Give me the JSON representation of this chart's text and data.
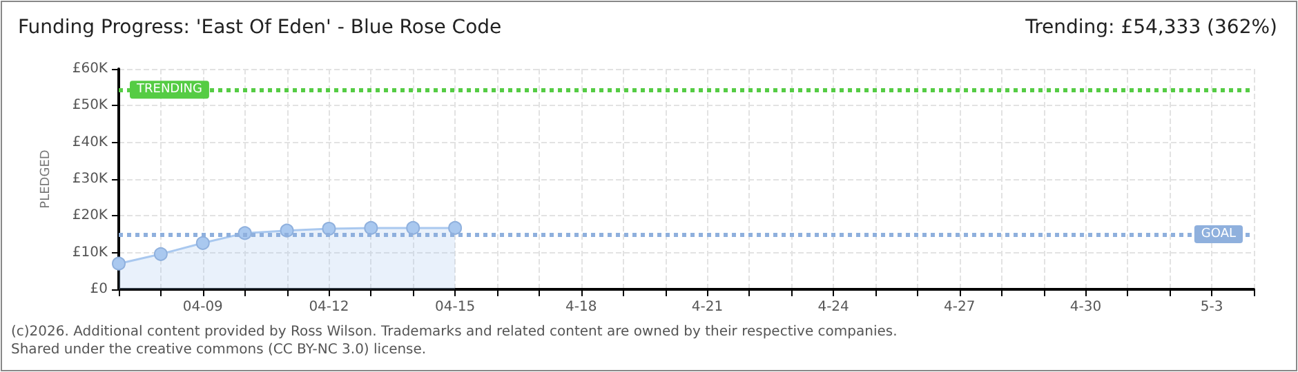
{
  "chart_data": {
    "type": "area",
    "title": "Funding Progress: 'East Of Eden' - Blue Rose Code",
    "subtitle": "Trending: £54,333 (362%)",
    "ylabel": "PLEDGED",
    "categories": [
      null,
      null,
      "04-09",
      null,
      null,
      "04-12",
      null,
      null,
      "04-15",
      null,
      null,
      "4-18",
      null,
      null,
      "4-21",
      null,
      null,
      "4-24",
      null,
      null,
      "4-27",
      null,
      null,
      "4-30",
      null,
      null,
      "5-3",
      null
    ],
    "series": [
      {
        "color": "#a9c8ef",
        "values": [
          7000,
          9600,
          12600,
          15300,
          16000,
          16500,
          16700,
          16700,
          16700,
          null,
          null,
          null,
          null,
          null,
          null,
          null,
          null,
          null,
          null,
          null,
          null,
          null,
          null,
          null,
          null,
          null,
          null,
          null
        ]
      }
    ],
    "ylim": [
      0,
      60000
    ],
    "yticks": [
      {
        "value": 0,
        "label": "£0"
      },
      {
        "value": 10000,
        "label": "£10K"
      },
      {
        "value": 20000,
        "label": "£20K"
      },
      {
        "value": 30000,
        "label": "£30K"
      },
      {
        "value": 40000,
        "label": "£40K"
      },
      {
        "value": 50000,
        "label": "£50K"
      },
      {
        "value": 60000,
        "label": "£60K"
      }
    ],
    "ref_lines": [
      {
        "axis": "y",
        "value": 54333,
        "label": "TRENDING",
        "color": "#55cc44",
        "line_style": "dotted"
      },
      {
        "axis": "y",
        "value": 15000,
        "label": "GOAL",
        "color": "#8fb0dd",
        "line_style": "dotted"
      }
    ],
    "annotations": [
      "(c)2026. Additional content provided by Ross Wilson. Trademarks and related content are owned by their respective companies.",
      "Shared under the creative commons (CC BY-NC 3.0) license."
    ],
    "grid": true,
    "marker": "circle",
    "line_style": "solid"
  }
}
